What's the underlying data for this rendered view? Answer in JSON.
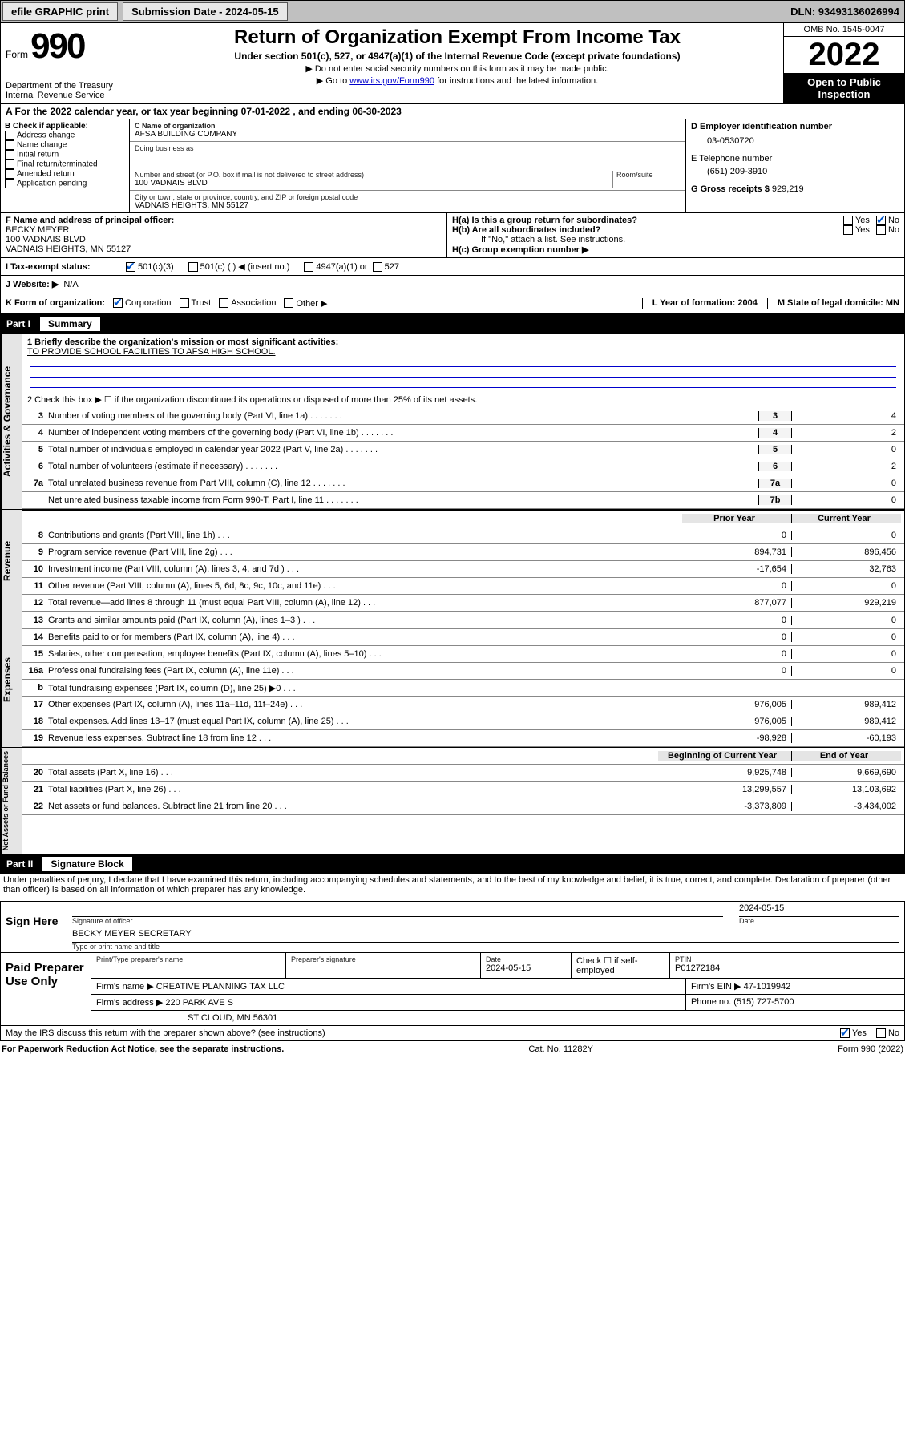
{
  "topbar": {
    "efile_label": "efile GRAPHIC print",
    "submission_label": "Submission Date - 2024-05-15",
    "dln_label": "DLN: 93493136026994"
  },
  "header": {
    "form_word": "Form",
    "form_number": "990",
    "title": "Return of Organization Exempt From Income Tax",
    "subtitle": "Under section 501(c), 527, or 4947(a)(1) of the Internal Revenue Code (except private foundations)",
    "note1": "▶ Do not enter social security numbers on this form as it may be made public.",
    "note2_pre": "▶ Go to ",
    "note2_link": "www.irs.gov/Form990",
    "note2_post": " for instructions and the latest information.",
    "dept": "Department of the Treasury",
    "irs": "Internal Revenue Service",
    "omb": "OMB No. 1545-0047",
    "year": "2022",
    "open_public1": "Open to Public",
    "open_public2": "Inspection"
  },
  "lineA": {
    "prefix": "A For the 2022 calendar year, or tax year beginning ",
    "begin": "07-01-2022",
    "mid": " , and ending ",
    "end": "06-30-2023"
  },
  "boxB": {
    "title": "B Check if applicable:",
    "opts": [
      "Address change",
      "Name change",
      "Initial return",
      "Final return/terminated",
      "Amended return",
      "Application pending"
    ]
  },
  "boxC": {
    "name_label": "C Name of organization",
    "name": "AFSA BUILDING COMPANY",
    "dba_label": "Doing business as",
    "dba": "",
    "street_label": "Number and street (or P.O. box if mail is not delivered to street address)",
    "room_label": "Room/suite",
    "street": "100 VADNAIS BLVD",
    "city_label": "City or town, state or province, country, and ZIP or foreign postal code",
    "city": "VADNAIS HEIGHTS, MN  55127"
  },
  "boxD": {
    "label": "D Employer identification number",
    "value": "03-0530720"
  },
  "boxE": {
    "label": "E Telephone number",
    "value": "(651) 209-3910"
  },
  "boxG": {
    "label": "G Gross receipts $ ",
    "value": "929,219"
  },
  "boxF": {
    "label": "F Name and address of principal officer:",
    "name": "BECKY MEYER",
    "addr1": "100 VADNAIS BLVD",
    "addr2": "VADNAIS HEIGHTS, MN  55127"
  },
  "boxH": {
    "ha": "H(a)  Is this a group return for subordinates?",
    "hb": "H(b)  Are all subordinates included?",
    "hnote": "If \"No,\" attach a list. See instructions.",
    "hc": "H(c)  Group exemption number ▶",
    "yes": "Yes",
    "no": "No"
  },
  "rowI": {
    "label": "I    Tax-exempt status:",
    "c3": "501(c)(3)",
    "c_blank": "501(c) (   ) ◀ (insert no.)",
    "a1": "4947(a)(1) or",
    "527": "527"
  },
  "rowJ": {
    "label": "J   Website: ▶",
    "value": "N/A"
  },
  "rowK": {
    "label": "K Form of organization:",
    "opts": [
      "Corporation",
      "Trust",
      "Association",
      "Other ▶"
    ],
    "L": "L Year of formation: 2004",
    "M": "M State of legal domicile: MN"
  },
  "part1": {
    "header_part": "Part I",
    "header_title": "Summary",
    "q1_label": "1   Briefly describe the organization's mission or most significant activities:",
    "q1_text": "TO PROVIDE SCHOOL FACILITIES TO AFSA HIGH SCHOOL.",
    "q2": "2   Check this box ▶ ☐  if the organization discontinued its operations or disposed of more than 25% of its net assets.",
    "sidebars": {
      "gov": "Activities & Governance",
      "rev": "Revenue",
      "exp": "Expenses",
      "net": "Net Assets or Fund Balances"
    },
    "gov_rows": [
      {
        "n": "3",
        "t": "Number of voting members of the governing body (Part VI, line 1a)",
        "box": "3",
        "v": "4"
      },
      {
        "n": "4",
        "t": "Number of independent voting members of the governing body (Part VI, line 1b)",
        "box": "4",
        "v": "2"
      },
      {
        "n": "5",
        "t": "Total number of individuals employed in calendar year 2022 (Part V, line 2a)",
        "box": "5",
        "v": "0"
      },
      {
        "n": "6",
        "t": "Total number of volunteers (estimate if necessary)",
        "box": "6",
        "v": "2"
      },
      {
        "n": "7a",
        "t": "Total unrelated business revenue from Part VIII, column (C), line 12",
        "box": "7a",
        "v": "0"
      },
      {
        "n": "",
        "t": "Net unrelated business taxable income from Form 990-T, Part I, line 11",
        "box": "7b",
        "v": "0"
      }
    ],
    "col_hdr_prior": "Prior Year",
    "col_hdr_curr": "Current Year",
    "rev_rows": [
      {
        "n": "8",
        "t": "Contributions and grants (Part VIII, line 1h)",
        "p": "0",
        "c": "0"
      },
      {
        "n": "9",
        "t": "Program service revenue (Part VIII, line 2g)",
        "p": "894,731",
        "c": "896,456"
      },
      {
        "n": "10",
        "t": "Investment income (Part VIII, column (A), lines 3, 4, and 7d )",
        "p": "-17,654",
        "c": "32,763"
      },
      {
        "n": "11",
        "t": "Other revenue (Part VIII, column (A), lines 5, 6d, 8c, 9c, 10c, and 11e)",
        "p": "0",
        "c": "0"
      },
      {
        "n": "12",
        "t": "Total revenue—add lines 8 through 11 (must equal Part VIII, column (A), line 12)",
        "p": "877,077",
        "c": "929,219"
      }
    ],
    "exp_rows": [
      {
        "n": "13",
        "t": "Grants and similar amounts paid (Part IX, column (A), lines 1–3 )",
        "p": "0",
        "c": "0"
      },
      {
        "n": "14",
        "t": "Benefits paid to or for members (Part IX, column (A), line 4)",
        "p": "0",
        "c": "0"
      },
      {
        "n": "15",
        "t": "Salaries, other compensation, employee benefits (Part IX, column (A), lines 5–10)",
        "p": "0",
        "c": "0"
      },
      {
        "n": "16a",
        "t": "Professional fundraising fees (Part IX, column (A), line 11e)",
        "p": "0",
        "c": "0"
      },
      {
        "n": "b",
        "t": "Total fundraising expenses (Part IX, column (D), line 25) ▶0",
        "p": "__grey__",
        "c": "__grey__"
      },
      {
        "n": "17",
        "t": "Other expenses (Part IX, column (A), lines 11a–11d, 11f–24e)",
        "p": "976,005",
        "c": "989,412"
      },
      {
        "n": "18",
        "t": "Total expenses. Add lines 13–17 (must equal Part IX, column (A), line 25)",
        "p": "976,005",
        "c": "989,412"
      },
      {
        "n": "19",
        "t": "Revenue less expenses. Subtract line 18 from line 12",
        "p": "-98,928",
        "c": "-60,193"
      }
    ],
    "net_hdr_begin": "Beginning of Current Year",
    "net_hdr_end": "End of Year",
    "net_rows": [
      {
        "n": "20",
        "t": "Total assets (Part X, line 16)",
        "p": "9,925,748",
        "c": "9,669,690"
      },
      {
        "n": "21",
        "t": "Total liabilities (Part X, line 26)",
        "p": "13,299,557",
        "c": "13,103,692"
      },
      {
        "n": "22",
        "t": "Net assets or fund balances. Subtract line 21 from line 20",
        "p": "-3,373,809",
        "c": "-3,434,002"
      }
    ]
  },
  "part2": {
    "header_part": "Part II",
    "header_title": "Signature Block",
    "penalties": "Under penalties of perjury, I declare that I have examined this return, including accompanying schedules and statements, and to the best of my knowledge and belief, it is true, correct, and complete. Declaration of preparer (other than officer) is based on all information of which preparer has any knowledge.",
    "sign_here": "Sign Here",
    "sig_officer_label": "Signature of officer",
    "sig_date_label": "Date",
    "sig_date": "2024-05-15",
    "officer_name": "BECKY MEYER  SECRETARY",
    "type_name_label": "Type or print name and title"
  },
  "paid": {
    "title": "Paid Preparer Use Only",
    "r1": {
      "a": "Print/Type preparer's name",
      "b": "Preparer's signature",
      "c_label": "Date",
      "c_val": "2024-05-15",
      "d": "Check ☐ if self-employed",
      "e_label": "PTIN",
      "e_val": "P01272184"
    },
    "r2": {
      "a_label": "Firm's name   ▶",
      "a_val": "CREATIVE PLANNING TAX LLC",
      "b_label": "Firm's EIN ▶",
      "b_val": "47-1019942"
    },
    "r3": {
      "a_label": "Firm's address ▶",
      "a_val": "220 PARK AVE S",
      "b_label": "Phone no.",
      "b_val": "(515) 727-5700"
    },
    "r4": {
      "a": "ST CLOUD, MN  56301"
    }
  },
  "bottom": {
    "discuss": "May the IRS discuss this return with the preparer shown above? (see instructions)",
    "yes": "Yes",
    "no": "No",
    "paperwork": "For Paperwork Reduction Act Notice, see the separate instructions.",
    "cat": "Cat. No. 11282Y",
    "form": "Form 990 (2022)"
  }
}
